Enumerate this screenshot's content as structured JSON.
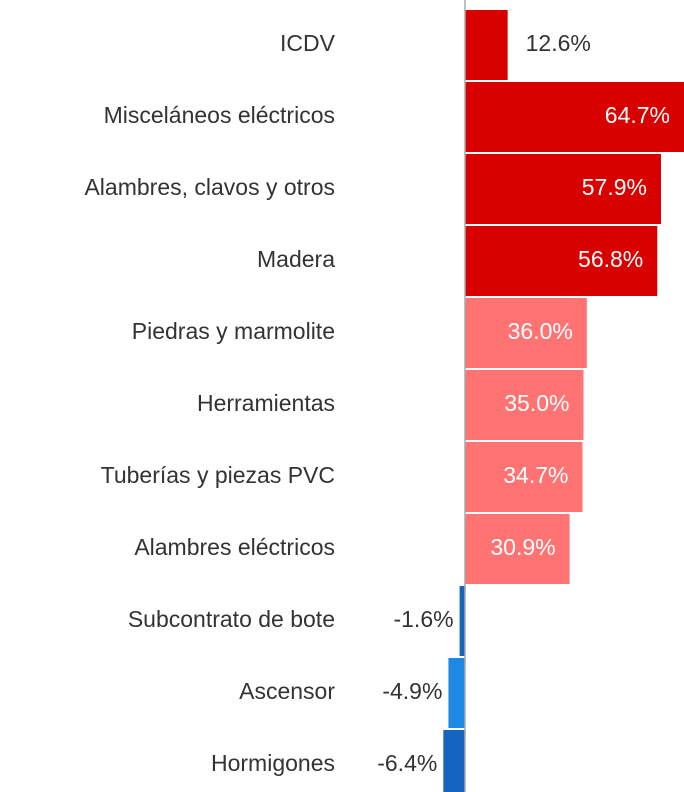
{
  "chart_data": {
    "type": "bar",
    "orientation": "horizontal",
    "categories": [
      "ICDV",
      "Misceláneos eléctricos",
      "Alambres, clavos y otros",
      "Madera",
      "Piedras y marmolite",
      "Herramientas",
      "Tuberías y piezas PVC",
      "Alambres eléctricos",
      "Subcontrato de bote",
      "Ascensor",
      "Hormigones"
    ],
    "values": [
      12.6,
      64.7,
      57.9,
      56.8,
      36.0,
      35.0,
      34.7,
      30.9,
      -1.6,
      -4.9,
      -6.4
    ],
    "value_labels": [
      "12.6%",
      "64.7%",
      "57.9%",
      "56.8%",
      "36.0%",
      "35.0%",
      "34.7%",
      "30.9%",
      "-1.6%",
      "-4.9%",
      "-6.4%"
    ],
    "colors": [
      "#d90000",
      "#d90000",
      "#d90000",
      "#d90000",
      "#ff7373",
      "#ff7373",
      "#ff7373",
      "#ff7373",
      "#1565c0",
      "#1e88e5",
      "#1565c0"
    ]
  }
}
